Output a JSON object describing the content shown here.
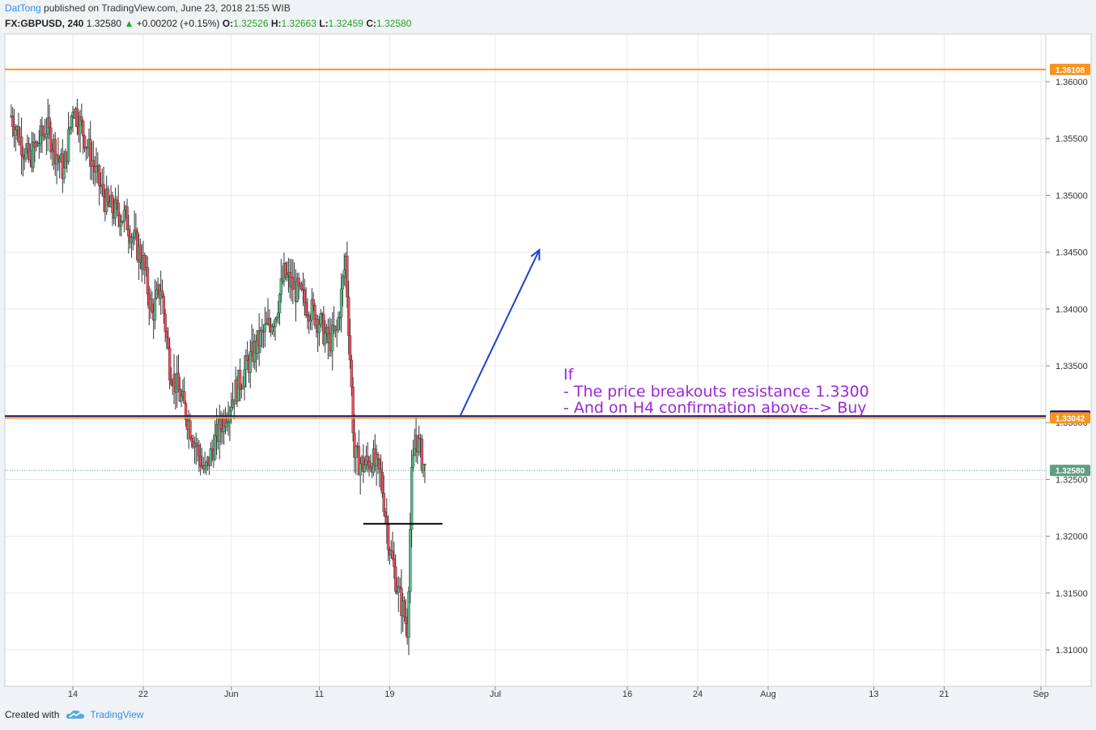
{
  "header": {
    "author": "DatTong",
    "published": "published on TradingView.com, June 23, 2018 21:55 WIB",
    "symbol": "FX:GBPUSD, 240",
    "last": "1.32580",
    "change": "+0.00202 (+0.15%)",
    "open_label": "O:",
    "open": "1.32526",
    "high_label": "H:",
    "high": "1.32663",
    "low_label": "L:",
    "low": "1.32459",
    "close_label": "C:",
    "close": "1.32580"
  },
  "footer": {
    "created_with": "Created with",
    "brand": "TradingView",
    "logo_icon": "tradingview-cloud-icon"
  },
  "colors": {
    "up": "#53b987",
    "down": "#eb4d5c",
    "wick": "#333333",
    "resistance_orange": "#f7931e",
    "resistance_navy": "#1a1a6e",
    "support": "#000000",
    "arrow": "#1f3fd9",
    "note": "#9b27d6",
    "grid": "#e6e9ec",
    "last_price": "#5e9e85"
  },
  "annotation": {
    "lines": [
      "If",
      "- The price breakouts resistance 1.3300",
      "-  And on H4 confirmation above--> Buy"
    ]
  },
  "chart_data": {
    "type": "candlestick",
    "ylim": [
      1.3068,
      1.3642
    ],
    "y_ticks": [
      1.31,
      1.315,
      1.32,
      1.325,
      1.33,
      1.335,
      1.34,
      1.345,
      1.35,
      1.355,
      1.36
    ],
    "y_tick_labels": [
      "1.31000",
      "1.31500",
      "1.32000",
      "1.32500",
      "1.33000",
      "1.33500",
      "1.34000",
      "1.34500",
      "1.35000",
      "1.35500",
      "1.36000"
    ],
    "x_ticks": [
      {
        "label": "14",
        "date": "2018-05-14"
      },
      {
        "label": "22",
        "date": "2018-05-22"
      },
      {
        "label": "Jun",
        "date": "2018-06-01"
      },
      {
        "label": "11",
        "date": "2018-06-11"
      },
      {
        "label": "19",
        "date": "2018-06-19"
      },
      {
        "label": "Jul",
        "date": "2018-07-01"
      },
      {
        "label": "16",
        "date": "2018-07-16"
      },
      {
        "label": "24",
        "date": "2018-07-24"
      },
      {
        "label": "Aug",
        "date": "2018-08-01"
      },
      {
        "label": "13",
        "date": "2018-08-13"
      },
      {
        "label": "21",
        "date": "2018-08-21"
      },
      {
        "label": "Sep",
        "date": "2018-09-01"
      }
    ],
    "levels": [
      {
        "price": 1.36108,
        "label": "1.36108",
        "color": "#f7931e"
      },
      {
        "price": 1.33058,
        "label": "1.33058",
        "color": "#1a1a6e"
      },
      {
        "price": 1.33042,
        "label": "1.33042",
        "color": "#f7931e"
      },
      {
        "price": 1.3258,
        "label": "1.32580",
        "color": "#5e9e85",
        "style": "dotted"
      }
    ],
    "support_segment": {
      "price": 1.3211,
      "from": "2018-06-16",
      "to": "2018-06-25"
    },
    "arrow": {
      "from": {
        "date": "2018-06-27",
        "price": 1.33058
      },
      "to": {
        "date": "2018-07-06",
        "price": 1.3452
      }
    },
    "trend_path": [
      [
        "2018-05-07",
        1.357
      ],
      [
        "2018-05-09",
        1.353
      ],
      [
        "2018-05-11",
        1.356
      ],
      [
        "2018-05-13",
        1.352
      ],
      [
        "2018-05-14",
        1.358
      ],
      [
        "2018-05-15",
        1.356
      ],
      [
        "2018-05-17",
        1.351
      ],
      [
        "2018-05-18",
        1.349
      ],
      [
        "2018-05-20",
        1.348
      ],
      [
        "2018-05-22",
        1.344
      ],
      [
        "2018-05-23",
        1.3395
      ],
      [
        "2018-05-24",
        1.342
      ],
      [
        "2018-05-25",
        1.335
      ],
      [
        "2018-05-27",
        1.3305
      ],
      [
        "2018-05-29",
        1.3255
      ],
      [
        "2018-05-30",
        1.328
      ],
      [
        "2018-05-31",
        1.33
      ],
      [
        "2018-06-01",
        1.332
      ],
      [
        "2018-06-04",
        1.337
      ],
      [
        "2018-06-06",
        1.3395
      ],
      [
        "2018-06-07",
        1.343
      ],
      [
        "2018-06-08",
        1.342
      ],
      [
        "2018-06-10",
        1.34
      ],
      [
        "2018-06-11",
        1.339
      ],
      [
        "2018-06-12",
        1.337
      ],
      [
        "2018-06-13",
        1.338
      ],
      [
        "2018-06-14",
        1.3445
      ],
      [
        "2018-06-15",
        1.327
      ],
      [
        "2018-06-16",
        1.3262
      ],
      [
        "2018-06-17",
        1.3268
      ],
      [
        "2018-06-18",
        1.3252
      ],
      [
        "2018-06-19",
        1.319
      ],
      [
        "2018-06-20",
        1.315
      ],
      [
        "2018-06-21",
        1.312
      ],
      [
        "2018-06-21b",
        1.325
      ],
      [
        "2018-06-22",
        1.329
      ],
      [
        "2018-06-23",
        1.3258
      ]
    ]
  }
}
